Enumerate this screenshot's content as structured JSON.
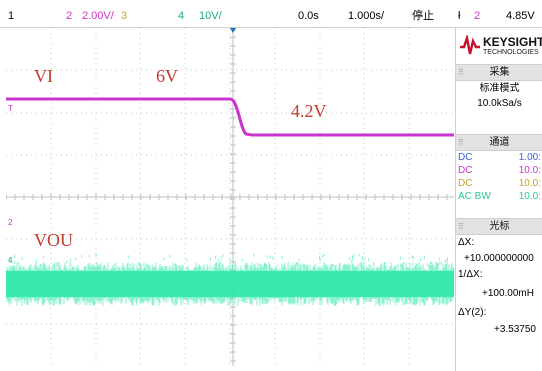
{
  "topbar": {
    "ch1_num": "1",
    "ch2_num": "2",
    "ch2_scale": "2.00V/",
    "ch3_num": "3",
    "ch4_num": "4",
    "ch4_scale": "10V/",
    "time_delay": "0.0s",
    "time_scale": "1.000s/",
    "run_state": "停止",
    "trigger_icon": "trigger-icon",
    "trigger_channel": "2",
    "trigger_level": "4.85V"
  },
  "colors": {
    "ch2": "#cc33cc",
    "ch3": "#c9a227",
    "ch4": "#2ee8a8",
    "ch1": "#c9a227",
    "accent": "#1d6fb8",
    "annotation": "#c0392b"
  },
  "annotations": {
    "vi_label": "VI",
    "v1": "6V",
    "v2": "4.2V",
    "vout_label": "VOU"
  },
  "markers": {
    "trigger_level": "T",
    "ch2_ground": "2",
    "ch4_ground": "4"
  },
  "sidebar": {
    "brand_name": "KEYSIGHT",
    "brand_sub": "TECHNOLOGIES",
    "acquire": {
      "header": "采集",
      "mode": "标准模式",
      "rate": "10.0kSa/s"
    },
    "channels": {
      "header": "通道",
      "rows": [
        {
          "coupling": "DC",
          "value": "1.00:"
        },
        {
          "coupling": "DC",
          "value": "10.0:"
        },
        {
          "coupling": "DC",
          "value": "10.0:"
        },
        {
          "coupling": "AC BW",
          "value": "10.0:"
        }
      ]
    },
    "cursors": {
      "header": "光标",
      "dx_label": "ΔX:",
      "dx_value": "+10.000000000",
      "inv_dx_label": "1/ΔX:",
      "inv_dx_value": "+100.00mH",
      "dy_label": "ΔY(2):",
      "dy_value": "+3.53750"
    }
  }
}
